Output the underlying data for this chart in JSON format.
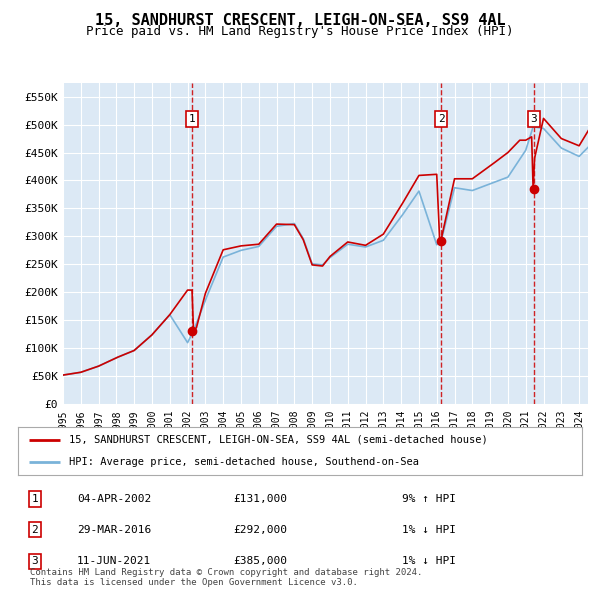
{
  "title": "15, SANDHURST CRESCENT, LEIGH-ON-SEA, SS9 4AL",
  "subtitle": "Price paid vs. HM Land Registry's House Price Index (HPI)",
  "fig_bg_color": "#ffffff",
  "plot_bg_color": "#dce9f5",
  "ylim": [
    0,
    575000
  ],
  "yticks": [
    0,
    50000,
    100000,
    150000,
    200000,
    250000,
    300000,
    350000,
    400000,
    450000,
    500000,
    550000
  ],
  "ytick_labels": [
    "£0",
    "£50K",
    "£100K",
    "£150K",
    "£200K",
    "£250K",
    "£300K",
    "£350K",
    "£400K",
    "£450K",
    "£500K",
    "£550K"
  ],
  "xlim_start": 1995.0,
  "xlim_end": 2024.5,
  "hpi_color": "#7ab3d9",
  "price_color": "#cc0000",
  "dashed_line_color": "#cc0000",
  "transactions": [
    {
      "id": 1,
      "date": "04-APR-2002",
      "price": 131000,
      "pct": "9%",
      "dir": "↑",
      "year": 2002.25
    },
    {
      "id": 2,
      "date": "29-MAR-2016",
      "price": 292000,
      "pct": "1%",
      "dir": "↓",
      "year": 2016.25
    },
    {
      "id": 3,
      "date": "11-JUN-2021",
      "price": 385000,
      "pct": "1%",
      "dir": "↓",
      "year": 2021.45
    }
  ],
  "legend_label_red": "15, SANDHURST CRESCENT, LEIGH-ON-SEA, SS9 4AL (semi-detached house)",
  "legend_label_blue": "HPI: Average price, semi-detached house, Southend-on-Sea",
  "footer": "Contains HM Land Registry data © Crown copyright and database right 2024.\nThis data is licensed under the Open Government Licence v3.0."
}
